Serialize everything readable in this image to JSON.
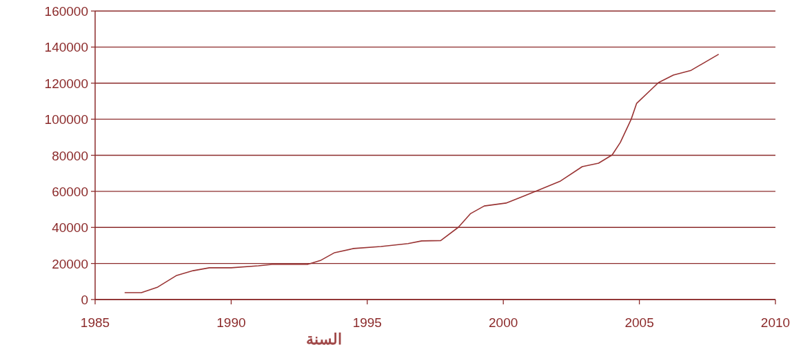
{
  "chart_data": {
    "type": "line",
    "xlabel": "السنة",
    "color": "#993333",
    "grid": "y",
    "marker": "none",
    "line_style": "solid",
    "x": [
      1986.1,
      1986.7,
      1987.3,
      1988,
      1988.6,
      1989.2,
      1990,
      1991,
      1991.5,
      1992.8,
      1993.3,
      1993.8,
      1994.5,
      1995.5,
      1996.5,
      1997,
      1997.7,
      1998.35,
      1998.8,
      1999.3,
      2000.1,
      2001.3,
      2002.1,
      2002.9,
      2003.5,
      2004,
      2004.3,
      2004.7,
      2004.9,
      2005.7,
      2006.25,
      2006.9,
      2007.9
    ],
    "values": [
      3800,
      3800,
      6900,
      13400,
      16000,
      17600,
      17600,
      18700,
      19500,
      19500,
      21800,
      26000,
      28300,
      29400,
      31000,
      32500,
      32700,
      40100,
      47700,
      51900,
      53500,
      60700,
      65700,
      73700,
      75600,
      80200,
      87100,
      100000,
      108800,
      120300,
      124500,
      127100,
      135900
    ],
    "xlim": [
      1985,
      2010
    ],
    "xticks": [
      1985,
      1990,
      1995,
      2000,
      2005,
      2010
    ],
    "ylim": [
      0,
      160000
    ],
    "yticks": [
      0,
      20000,
      40000,
      60000,
      80000,
      100000,
      120000,
      140000,
      160000
    ]
  }
}
